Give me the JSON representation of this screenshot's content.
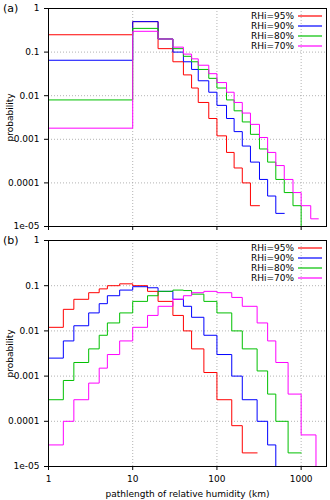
{
  "chart_data": [
    {
      "type": "histogram",
      "title": "(a)",
      "ylabel": "probability",
      "bins": [
        1,
        10,
        20,
        30,
        40,
        50,
        60,
        80,
        100,
        130,
        160,
        200,
        250,
        320,
        400,
        500,
        630,
        800,
        1000,
        1300,
        1600,
        2000
      ],
      "series": [
        {
          "name": "RHi=95%",
          "color": "#ff0000",
          "values": [
            0.25,
            0.5,
            0.12,
            0.06,
            0.03,
            0.015,
            0.007,
            0.003,
            0.0012,
            0.0005,
            0.00022,
            0.0001,
            3e-05,
            null,
            null,
            null,
            null,
            null,
            null,
            null,
            null
          ]
        },
        {
          "name": "RHi=90%",
          "color": "#0000ff",
          "values": [
            0.065,
            0.5,
            0.2,
            0.1,
            0.06,
            0.04,
            0.022,
            0.012,
            0.006,
            0.003,
            0.0015,
            0.0007,
            0.0003,
            0.00012,
            5e-05,
            2e-05,
            null,
            null,
            null,
            null,
            null
          ]
        },
        {
          "name": "RHi=80%",
          "color": "#00c000",
          "values": [
            0.008,
            0.35,
            0.2,
            0.12,
            0.08,
            0.06,
            0.04,
            0.025,
            0.015,
            0.008,
            0.0045,
            0.0025,
            0.0013,
            0.0006,
            0.0003,
            0.00012,
            6e-05,
            3e-05,
            1e-05,
            null,
            null
          ]
        },
        {
          "name": "RHi=70%",
          "color": "#ff00ff",
          "values": [
            0.0018,
            0.3,
            0.2,
            0.13,
            0.09,
            0.07,
            0.05,
            0.032,
            0.02,
            0.012,
            0.007,
            0.004,
            0.0022,
            0.0011,
            0.0005,
            0.00025,
            0.00012,
            6e-05,
            3e-05,
            1.5e-05,
            null
          ]
        }
      ],
      "xlim": [
        1,
        2000
      ],
      "xticks": [
        1,
        10,
        100,
        1000
      ],
      "ylim": [
        1e-05,
        1
      ],
      "yticks": [
        {
          "value": 1e-05,
          "label": "1e-05"
        },
        0.0001,
        0.001,
        0.01,
        0.1,
        1
      ],
      "log": true,
      "grid": true,
      "legend": "top-right",
      "tick_labels": "y"
    },
    {
      "type": "histogram",
      "title": "(b)",
      "ylabel": "probability",
      "xlabel": "pathlength of relative humidity (km)",
      "bins": [
        1,
        1.5,
        2,
        3,
        4,
        5,
        7,
        10,
        15,
        20,
        30,
        40,
        50,
        70,
        100,
        150,
        200,
        300,
        400,
        500,
        700,
        1000,
        1500,
        2000
      ],
      "series": [
        {
          "name": "RHi=95%",
          "color": "#ff0000",
          "values": [
            0.012,
            0.03,
            0.05,
            0.07,
            0.085,
            0.1,
            0.11,
            0.1,
            0.075,
            0.045,
            0.022,
            0.01,
            0.004,
            0.0012,
            0.0003,
            8e-05,
            2e-05,
            null,
            null,
            null,
            null,
            null,
            null
          ]
        },
        {
          "name": "RHi=90%",
          "color": "#0000ff",
          "values": [
            0.0025,
            0.006,
            0.013,
            0.025,
            0.04,
            0.06,
            0.08,
            0.095,
            0.09,
            0.075,
            0.05,
            0.035,
            0.02,
            0.008,
            0.003,
            0.001,
            0.0003,
            0.0001,
            3e-05,
            1e-05,
            null,
            null,
            null
          ]
        },
        {
          "name": "RHi=80%",
          "color": "#00c000",
          "values": [
            0.0003,
            0.0008,
            0.002,
            0.004,
            0.008,
            0.015,
            0.025,
            0.045,
            0.06,
            0.075,
            0.08,
            0.078,
            0.065,
            0.045,
            0.025,
            0.01,
            0.004,
            0.0013,
            0.0004,
            0.0001,
            2e-05,
            null,
            null
          ]
        },
        {
          "name": "RHi=70%",
          "color": "#ff00ff",
          "values": [
            3e-05,
            0.0001,
            0.0003,
            0.0007,
            0.0015,
            0.003,
            0.006,
            0.012,
            0.022,
            0.035,
            0.05,
            0.06,
            0.07,
            0.075,
            0.07,
            0.055,
            0.035,
            0.015,
            0.006,
            0.002,
            0.0004,
            5e-05,
            1e-05
          ]
        }
      ],
      "xlim": [
        1,
        2000
      ],
      "xticks": [
        1,
        10,
        100,
        1000
      ],
      "ylim": [
        1e-05,
        1
      ],
      "yticks": [
        {
          "value": 1e-05,
          "label": "1e-05"
        },
        0.0001,
        0.001,
        0.01,
        0.1,
        1
      ],
      "log": true,
      "grid": true,
      "legend": "top-right"
    }
  ]
}
